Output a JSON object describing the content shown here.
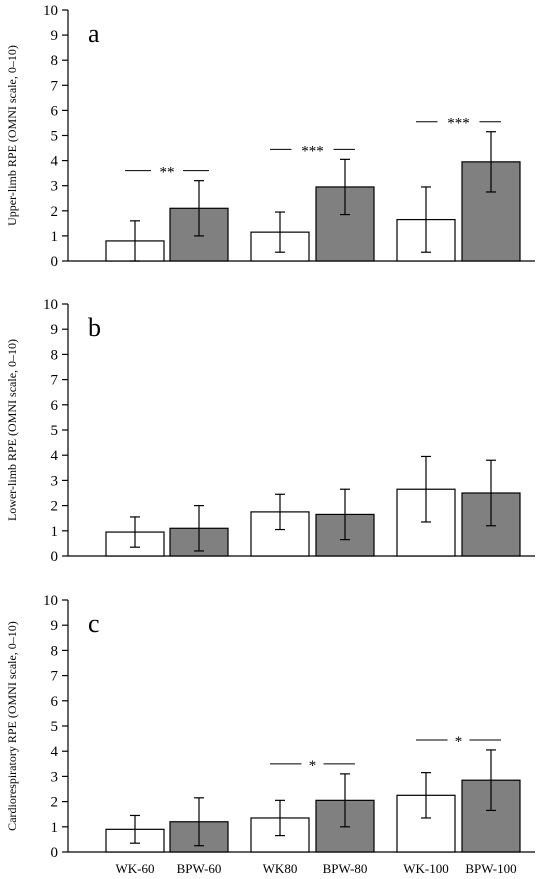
{
  "chart_data": [
    {
      "type": "bar",
      "panel_label": "a",
      "ylabel": "Upper-limb RPE (OMNI scale, 0–10)",
      "ylim": [
        0,
        10
      ],
      "yticks": [
        "0",
        "1",
        "2",
        "3",
        "4",
        "5",
        "6",
        "7",
        "8",
        "9",
        "10"
      ],
      "categories": [
        "WK-60",
        "BPW-60",
        "WK80",
        "BPW-80",
        "WK-100",
        "BPW-100"
      ],
      "values": [
        0.8,
        2.1,
        1.15,
        2.95,
        1.65,
        3.95
      ],
      "errors": [
        0.8,
        1.1,
        0.8,
        1.1,
        1.3,
        1.2
      ],
      "fill": [
        "#ffffff",
        "#808080",
        "#ffffff",
        "#808080",
        "#ffffff",
        "#808080"
      ],
      "significance": [
        {
          "pair": [
            0,
            1
          ],
          "label": "**"
        },
        {
          "pair": [
            2,
            3
          ],
          "label": "***"
        },
        {
          "pair": [
            4,
            5
          ],
          "label": "***"
        }
      ]
    },
    {
      "type": "bar",
      "panel_label": "b",
      "ylabel": "Lower-limb RPE (OMNI scale, 0–10)",
      "ylim": [
        0,
        10
      ],
      "yticks": [
        "0",
        "1",
        "2",
        "3",
        "4",
        "5",
        "6",
        "7",
        "8",
        "9",
        "10"
      ],
      "categories": [
        "WK-60",
        "BPW-60",
        "WK80",
        "BPW-80",
        "WK-100",
        "BPW-100"
      ],
      "values": [
        0.95,
        1.1,
        1.75,
        1.65,
        2.65,
        2.5
      ],
      "errors": [
        0.6,
        0.9,
        0.7,
        1.0,
        1.3,
        1.3
      ],
      "fill": [
        "#ffffff",
        "#808080",
        "#ffffff",
        "#808080",
        "#ffffff",
        "#808080"
      ],
      "significance": []
    },
    {
      "type": "bar",
      "panel_label": "c",
      "ylabel": "Cardiorespiratory RPE (OMNI scale, 0–10)",
      "ylim": [
        0,
        10
      ],
      "yticks": [
        "0",
        "1",
        "2",
        "3",
        "4",
        "5",
        "6",
        "7",
        "8",
        "9",
        "10"
      ],
      "categories": [
        "WK-60",
        "BPW-60",
        "WK80",
        "BPW-80",
        "WK-100",
        "BPW-100"
      ],
      "values": [
        0.9,
        1.2,
        1.35,
        2.05,
        2.25,
        2.85
      ],
      "errors": [
        0.55,
        0.95,
        0.7,
        1.05,
        0.9,
        1.2
      ],
      "fill": [
        "#ffffff",
        "#808080",
        "#ffffff",
        "#808080",
        "#ffffff",
        "#808080"
      ],
      "significance": [
        {
          "pair": [
            2,
            3
          ],
          "label": "*"
        },
        {
          "pair": [
            4,
            5
          ],
          "label": "*"
        }
      ]
    }
  ]
}
